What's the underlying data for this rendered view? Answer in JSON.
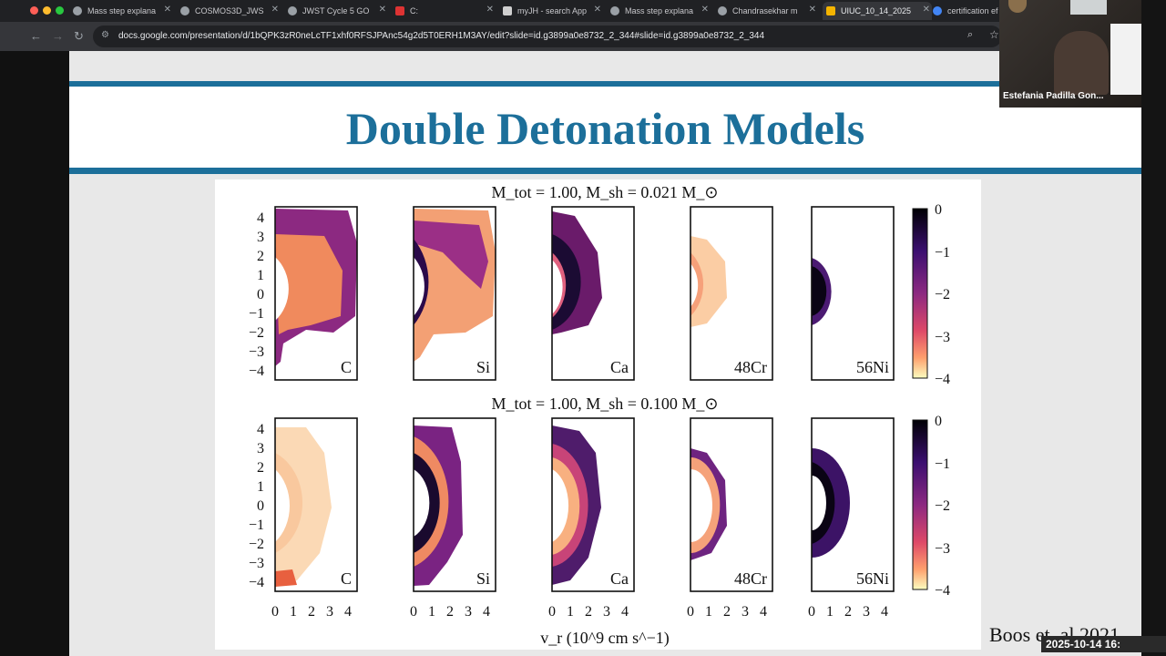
{
  "browser": {
    "tabs": [
      {
        "label": "Mass step explana",
        "icon": "web-icon"
      },
      {
        "label": "COSMOS3D_JWS",
        "icon": "github-icon"
      },
      {
        "label": "JWST Cycle 5 GO",
        "icon": "web-icon"
      },
      {
        "label": "C:",
        "icon": "iop-icon"
      },
      {
        "label": "myJH - search App",
        "icon": "jh-icon"
      },
      {
        "label": "Mass step explana",
        "icon": "web-icon"
      },
      {
        "label": "Chandrasekhar m",
        "icon": "web-icon"
      },
      {
        "label": "UIUC_10_14_2025",
        "icon": "slides-icon"
      },
      {
        "label": "certification ef",
        "icon": "google-icon"
      }
    ],
    "url": "docs.google.com/presentation/d/1bQPK3zR0neLcTF1xhf0RFSJPAnc54g2d5T0ERH1M3AY/edit?slide=id.g3899a0e8732_2_344#slide=id.g3899a0e8732_2_344"
  },
  "slide": {
    "title": "Double Detonation Models",
    "credit": "Boos et. al 2021"
  },
  "figure": {
    "row1_title": "M_tot = 1.00, M_sh = 0.021 M_⊙",
    "row2_title": "M_tot = 1.00, M_sh = 0.100 M_⊙",
    "panels": [
      "C",
      "Si",
      "Ca",
      "48Cr",
      "56Ni"
    ],
    "y_ticks": [
      "4",
      "3",
      "2",
      "1",
      "0",
      "−1",
      "−2",
      "−3",
      "−4"
    ],
    "x_ticks": [
      "0",
      "1",
      "2",
      "3",
      "4"
    ],
    "colorbar_ticks": [
      "0",
      "−1",
      "−2",
      "−3",
      "−4"
    ],
    "xlabel": "v_r (10^9 cm s^−1)"
  },
  "video": {
    "participant": "Estefania Padilla Gon...",
    "timestamp": "2025-10-14 16:"
  },
  "colors": {
    "accent": "#1c6f9a",
    "chrome_dark": "#202124",
    "chrome_mid": "#35363a"
  }
}
